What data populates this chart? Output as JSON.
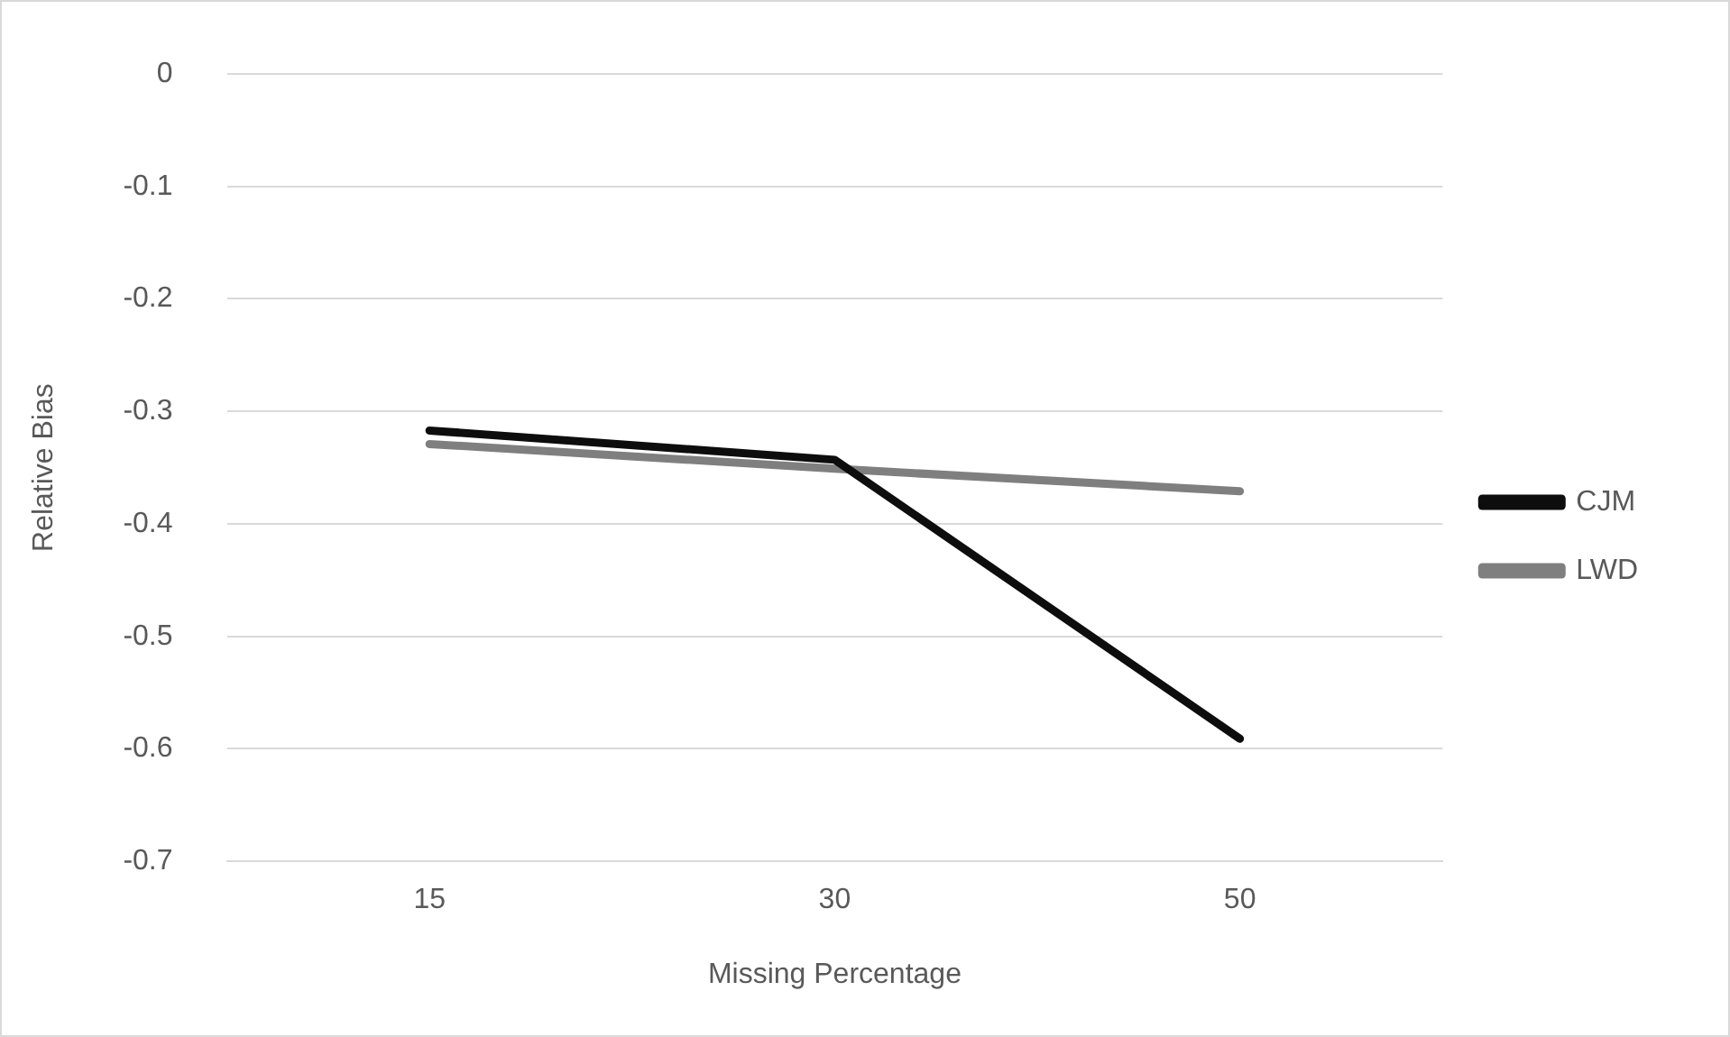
{
  "chart_data": {
    "type": "line",
    "xlabel": "Missing Percentage",
    "ylabel": "Relative Bias",
    "categories": [
      "15",
      "30",
      "50"
    ],
    "series": [
      {
        "name": "CJM",
        "color": "#0d0d0d",
        "values": [
          -0.317,
          -0.343,
          -0.591
        ]
      },
      {
        "name": "LWD",
        "color": "#7f7f7f",
        "values": [
          -0.329,
          -0.351,
          -0.371
        ]
      }
    ],
    "ylim": [
      -0.7,
      0
    ],
    "yticks": [
      0,
      -0.1,
      -0.2,
      -0.3,
      -0.4,
      -0.5,
      -0.6,
      -0.7
    ],
    "grid": "y",
    "legend": "right",
    "marker": "none",
    "line_style": "solid"
  }
}
